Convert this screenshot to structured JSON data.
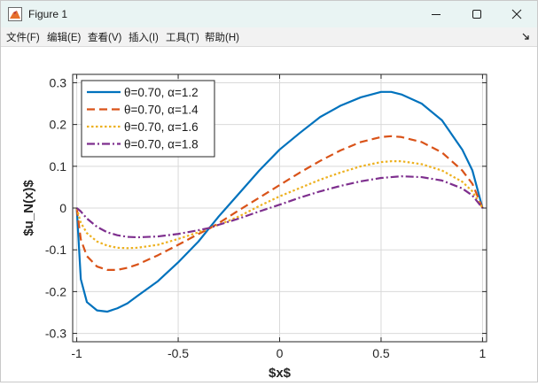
{
  "window": {
    "title": "Figure 1",
    "icons": {
      "app": "matlab-figure-icon",
      "minimize": "minimize-icon",
      "maximize": "maximize-icon",
      "close": "close-icon",
      "dock": "dock-arrow-icon"
    }
  },
  "menu": {
    "items": [
      {
        "label": "文件(F)"
      },
      {
        "label": "编辑(E)"
      },
      {
        "label": "查看(V)"
      },
      {
        "label": "插入(I)"
      },
      {
        "label": "工具(T)"
      },
      {
        "label": "帮助(H)"
      }
    ]
  },
  "colors": {
    "series1": "#0072bd",
    "series2": "#d95319",
    "series3": "#edb120",
    "series4": "#7e2f8e",
    "grid": "#d9d9d9",
    "axis": "#262626"
  },
  "chart_data": {
    "type": "line",
    "xlabel": "$x$",
    "ylabel": "$u_N(x)$",
    "xlim": [
      -1.02,
      1.02
    ],
    "ylim": [
      -0.32,
      0.32
    ],
    "grid": true,
    "legend_position": "top-left",
    "x_ticks": [
      -1,
      -0.5,
      0,
      0.5,
      1
    ],
    "x_tick_labels": [
      "-1",
      "-0.5",
      "0",
      "0.5",
      "1"
    ],
    "y_ticks": [
      -0.3,
      -0.2,
      -0.1,
      0,
      0.1,
      0.2,
      0.3
    ],
    "y_tick_labels": [
      "-0.3",
      "-0.2",
      "-0.1",
      "0",
      "0.1",
      "0.2",
      "0.3"
    ],
    "x": [
      -1.0,
      -0.98,
      -0.95,
      -0.9,
      -0.85,
      -0.8,
      -0.75,
      -0.7,
      -0.6,
      -0.5,
      -0.4,
      -0.35,
      -0.3,
      -0.2,
      -0.1,
      0.0,
      0.1,
      0.2,
      0.3,
      0.4,
      0.5,
      0.55,
      0.6,
      0.7,
      0.8,
      0.9,
      0.95,
      1.0
    ],
    "series": [
      {
        "name": "θ=0.70,  α=1.2",
        "label_prefix": "θ=0.70,  ",
        "label_alpha": "α=1.2",
        "style": "solid",
        "values": [
          0.0,
          -0.17,
          -0.225,
          -0.245,
          -0.248,
          -0.24,
          -0.228,
          -0.21,
          -0.175,
          -0.13,
          -0.08,
          -0.05,
          -0.02,
          0.035,
          0.09,
          0.14,
          0.18,
          0.218,
          0.245,
          0.265,
          0.278,
          0.278,
          0.272,
          0.25,
          0.21,
          0.14,
          0.09,
          0.0
        ]
      },
      {
        "name": "θ=0.70,  α=1.4",
        "label_prefix": "θ=0.70,  ",
        "label_alpha": "α=1.4",
        "style": "dashed",
        "values": [
          0.0,
          -0.075,
          -0.115,
          -0.14,
          -0.148,
          -0.148,
          -0.143,
          -0.135,
          -0.113,
          -0.088,
          -0.062,
          -0.05,
          -0.036,
          -0.005,
          0.025,
          0.055,
          0.085,
          0.113,
          0.138,
          0.158,
          0.17,
          0.172,
          0.17,
          0.158,
          0.133,
          0.09,
          0.058,
          0.0
        ]
      },
      {
        "name": "θ=0.70,  α=1.6",
        "label_prefix": "θ=0.70,  ",
        "label_alpha": "α=1.6",
        "style": "dotted",
        "values": [
          0.0,
          -0.035,
          -0.06,
          -0.08,
          -0.09,
          -0.095,
          -0.096,
          -0.095,
          -0.088,
          -0.074,
          -0.058,
          -0.048,
          -0.04,
          -0.02,
          0.005,
          0.028,
          0.048,
          0.068,
          0.085,
          0.1,
          0.11,
          0.112,
          0.112,
          0.105,
          0.09,
          0.063,
          0.04,
          0.0
        ]
      },
      {
        "name": "θ=0.70,  α=1.8",
        "label_prefix": "θ=0.70,  ",
        "label_alpha": "α=1.8",
        "style": "dashdot",
        "values": [
          0.0,
          -0.008,
          -0.025,
          -0.045,
          -0.058,
          -0.065,
          -0.069,
          -0.07,
          -0.068,
          -0.062,
          -0.053,
          -0.048,
          -0.04,
          -0.025,
          -0.008,
          0.008,
          0.025,
          0.04,
          0.053,
          0.064,
          0.072,
          0.074,
          0.076,
          0.074,
          0.066,
          0.047,
          0.03,
          0.0
        ]
      }
    ]
  }
}
